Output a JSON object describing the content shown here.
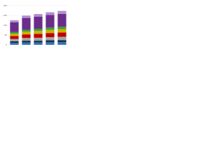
{
  "chart_data": {
    "type": "stacked-bar",
    "categories": [
      null,
      null,
      null,
      null,
      null
    ],
    "series": [
      {
        "color": "#2e75b6",
        "values": [
          10,
          12,
          12,
          13,
          14
        ]
      },
      {
        "color": "#1c2a48",
        "values": [
          8,
          9,
          9,
          10,
          10
        ]
      },
      {
        "color": "#a5a5a5",
        "values": [
          12,
          14,
          15,
          16,
          17
        ]
      },
      {
        "color": "#c00000",
        "values": [
          15,
          18,
          20,
          21,
          22
        ]
      },
      {
        "color": "#c9b200",
        "values": [
          12,
          14,
          15,
          16,
          17
        ]
      },
      {
        "color": "#3a9e3a",
        "values": [
          8,
          10,
          11,
          12,
          12
        ]
      },
      {
        "color": "#6b2d8a",
        "values": [
          50,
          60,
          62,
          64,
          66
        ]
      },
      {
        "color": "#b48cd0",
        "values": [
          10,
          12,
          13,
          14,
          15
        ]
      }
    ],
    "ylim": [
      0,
      200
    ],
    "yticks": [
      0,
      50,
      100,
      150,
      200
    ],
    "grid": true
  }
}
